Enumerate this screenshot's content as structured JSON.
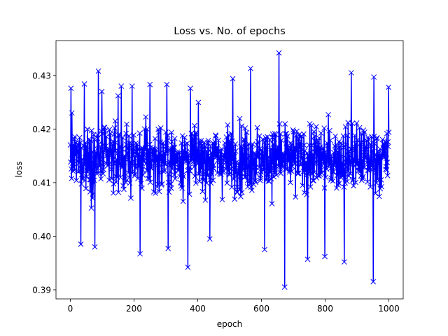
{
  "chart_data": {
    "type": "line",
    "title": "Loss vs. No. of epochs",
    "xlabel": "epoch",
    "ylabel": "loss",
    "xlim": [
      -45,
      1045
    ],
    "ylim": [
      0.3883,
      0.4365
    ],
    "xticks": [
      0,
      200,
      400,
      600,
      800,
      1000
    ],
    "yticks": [
      0.39,
      0.4,
      0.41,
      0.42,
      0.43
    ],
    "xtick_labels": [
      "0",
      "200",
      "400",
      "600",
      "800",
      "1000"
    ],
    "ytick_labels": [
      "0.39",
      "0.40",
      "0.41",
      "0.42",
      "0.43"
    ],
    "grid": false,
    "legend": null,
    "series": [
      {
        "color": "#0000ff",
        "marker": "x",
        "x_start": 0,
        "x_end": 1000,
        "x_step": 1,
        "y_stats": {
          "min": 0.3905,
          "max": 0.4342,
          "mean": 0.4145
        },
        "peaks": [
          {
            "x": 2,
            "y": 0.4276
          },
          {
            "x": 33,
            "y": 0.3985
          },
          {
            "x": 44,
            "y": 0.4284
          },
          {
            "x": 77,
            "y": 0.398
          },
          {
            "x": 88,
            "y": 0.4308
          },
          {
            "x": 99,
            "y": 0.427
          },
          {
            "x": 150,
            "y": 0.4262
          },
          {
            "x": 160,
            "y": 0.428
          },
          {
            "x": 194,
            "y": 0.428
          },
          {
            "x": 219,
            "y": 0.3967
          },
          {
            "x": 250,
            "y": 0.4283
          },
          {
            "x": 303,
            "y": 0.4283
          },
          {
            "x": 307,
            "y": 0.3977
          },
          {
            "x": 369,
            "y": 0.3942
          },
          {
            "x": 377,
            "y": 0.4276
          },
          {
            "x": 438,
            "y": 0.3995
          },
          {
            "x": 510,
            "y": 0.4294
          },
          {
            "x": 566,
            "y": 0.4313
          },
          {
            "x": 610,
            "y": 0.3975
          },
          {
            "x": 655,
            "y": 0.4342
          },
          {
            "x": 673,
            "y": 0.3905
          },
          {
            "x": 745,
            "y": 0.3957
          },
          {
            "x": 799,
            "y": 0.3962
          },
          {
            "x": 860,
            "y": 0.3952
          },
          {
            "x": 882,
            "y": 0.4305
          },
          {
            "x": 951,
            "y": 0.3915
          },
          {
            "x": 953,
            "y": 0.4297
          },
          {
            "x": 999,
            "y": 0.4278
          }
        ]
      }
    ]
  }
}
